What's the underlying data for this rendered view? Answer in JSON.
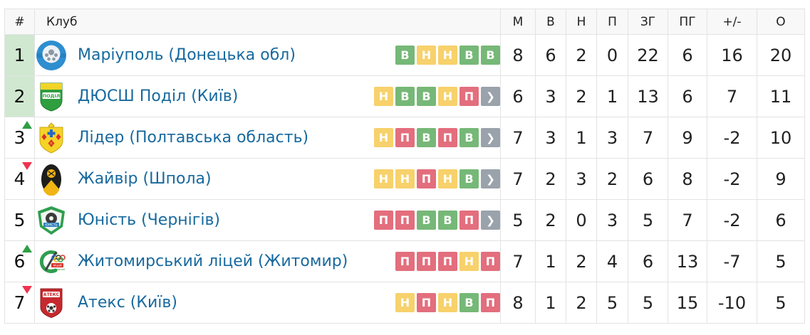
{
  "colors": {
    "win": "#76b877",
    "draw": "#f7d16b",
    "loss": "#e36e7d",
    "more": "#9aa2ab",
    "up": "#2f9e44",
    "down": "#ef3350",
    "link": "#17699e",
    "highlight": "#d0e8d0"
  },
  "table": {
    "headers": [
      {
        "key": "pos",
        "label": "#"
      },
      {
        "key": "club",
        "label": "Клуб"
      },
      {
        "key": "m",
        "label": "М"
      },
      {
        "key": "w",
        "label": "В"
      },
      {
        "key": "d",
        "label": "Н"
      },
      {
        "key": "l",
        "label": "П"
      },
      {
        "key": "gf",
        "label": "ЗГ"
      },
      {
        "key": "ga",
        "label": "ПГ"
      },
      {
        "key": "diff",
        "label": "+/-"
      },
      {
        "key": "pts",
        "label": "О"
      }
    ],
    "more_label": "❯",
    "rows": [
      {
        "pos": "1",
        "movement": "none",
        "promo_highlight": true,
        "club": "Маріуполь (Донецька обл)",
        "crest": "mariupol-crest",
        "form": [
          {
            "label": "В",
            "result": "win"
          },
          {
            "label": "Н",
            "result": "draw"
          },
          {
            "label": "Н",
            "result": "draw"
          },
          {
            "label": "В",
            "result": "win"
          },
          {
            "label": "В",
            "result": "win"
          }
        ],
        "more_button": false,
        "stats": {
          "m": "8",
          "w": "6",
          "d": "2",
          "l": "0",
          "gf": "22",
          "ga": "6",
          "diff": "16",
          "pts": "20"
        }
      },
      {
        "pos": "2",
        "movement": "none",
        "promo_highlight": true,
        "club": "ДЮСШ Поділ (Київ)",
        "crest": "podil-crest",
        "form": [
          {
            "label": "Н",
            "result": "draw"
          },
          {
            "label": "В",
            "result": "win"
          },
          {
            "label": "В",
            "result": "win"
          },
          {
            "label": "Н",
            "result": "draw"
          },
          {
            "label": "П",
            "result": "loss"
          }
        ],
        "more_button": true,
        "stats": {
          "m": "6",
          "w": "3",
          "d": "2",
          "l": "1",
          "gf": "13",
          "ga": "6",
          "diff": "7",
          "pts": "11"
        }
      },
      {
        "pos": "3",
        "movement": "up",
        "promo_highlight": false,
        "club": "Лідер (Полтавська область)",
        "crest": "lider-crest",
        "form": [
          {
            "label": "Н",
            "result": "draw"
          },
          {
            "label": "П",
            "result": "loss"
          },
          {
            "label": "В",
            "result": "win"
          },
          {
            "label": "П",
            "result": "loss"
          },
          {
            "label": "В",
            "result": "win"
          }
        ],
        "more_button": true,
        "stats": {
          "m": "7",
          "w": "3",
          "d": "1",
          "l": "3",
          "gf": "7",
          "ga": "9",
          "diff": "-2",
          "pts": "10"
        }
      },
      {
        "pos": "4",
        "movement": "down",
        "promo_highlight": false,
        "club": "Жайвір (Шпола)",
        "crest": "zhayvir-crest",
        "form": [
          {
            "label": "Н",
            "result": "draw"
          },
          {
            "label": "Н",
            "result": "draw"
          },
          {
            "label": "П",
            "result": "loss"
          },
          {
            "label": "Н",
            "result": "draw"
          },
          {
            "label": "В",
            "result": "win"
          }
        ],
        "more_button": true,
        "stats": {
          "m": "7",
          "w": "2",
          "d": "3",
          "l": "2",
          "gf": "6",
          "ga": "8",
          "diff": "-2",
          "pts": "9"
        }
      },
      {
        "pos": "5",
        "movement": "none",
        "promo_highlight": false,
        "club": "Юність (Чернігів)",
        "crest": "yunist-crest",
        "form": [
          {
            "label": "П",
            "result": "loss"
          },
          {
            "label": "П",
            "result": "loss"
          },
          {
            "label": "В",
            "result": "win"
          },
          {
            "label": "В",
            "result": "win"
          },
          {
            "label": "П",
            "result": "loss"
          }
        ],
        "more_button": true,
        "stats": {
          "m": "5",
          "w": "2",
          "d": "0",
          "l": "3",
          "gf": "5",
          "ga": "7",
          "diff": "-2",
          "pts": "6"
        }
      },
      {
        "pos": "6",
        "movement": "up",
        "promo_highlight": false,
        "club": "Житомирський ліцей (Житомир)",
        "crest": "zhytomyr-crest",
        "form": [
          {
            "label": "П",
            "result": "loss"
          },
          {
            "label": "П",
            "result": "loss"
          },
          {
            "label": "П",
            "result": "loss"
          },
          {
            "label": "Н",
            "result": "draw"
          },
          {
            "label": "П",
            "result": "loss"
          }
        ],
        "more_button": false,
        "stats": {
          "m": "7",
          "w": "1",
          "d": "2",
          "l": "4",
          "gf": "6",
          "ga": "13",
          "diff": "-7",
          "pts": "5"
        }
      },
      {
        "pos": "7",
        "movement": "down",
        "promo_highlight": false,
        "club": "Атекс (Київ)",
        "crest": "ateks-crest",
        "form": [
          {
            "label": "Н",
            "result": "draw"
          },
          {
            "label": "П",
            "result": "loss"
          },
          {
            "label": "Н",
            "result": "draw"
          },
          {
            "label": "В",
            "result": "win"
          },
          {
            "label": "П",
            "result": "loss"
          }
        ],
        "more_button": false,
        "stats": {
          "m": "8",
          "w": "1",
          "d": "2",
          "l": "5",
          "gf": "5",
          "ga": "15",
          "diff": "-10",
          "pts": "5"
        }
      }
    ]
  }
}
